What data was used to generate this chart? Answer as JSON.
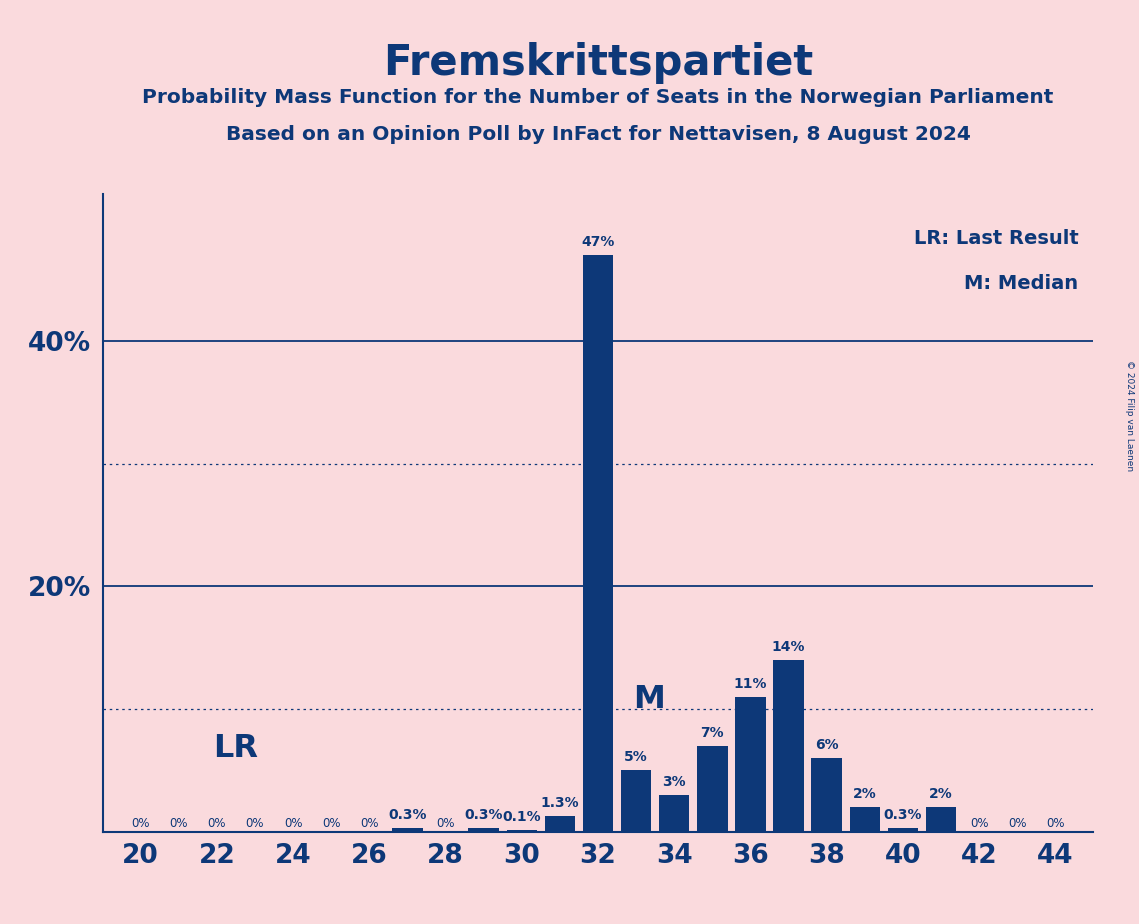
{
  "title": "Fremskrittspartiet",
  "subtitle1": "Probability Mass Function for the Number of Seats in the Norwegian Parliament",
  "subtitle2": "Based on an Opinion Poll by InFact for Nettavisen, 8 August 2024",
  "copyright": "© 2024 Filip van Laenen",
  "seats": [
    20,
    21,
    22,
    23,
    24,
    25,
    26,
    27,
    28,
    29,
    30,
    31,
    32,
    33,
    34,
    35,
    36,
    37,
    38,
    39,
    40,
    41,
    42,
    43,
    44
  ],
  "probabilities": [
    0.0,
    0.0,
    0.0,
    0.0,
    0.0,
    0.0,
    0.0,
    0.003,
    0.0,
    0.003,
    0.001,
    0.013,
    0.47,
    0.05,
    0.03,
    0.07,
    0.11,
    0.14,
    0.06,
    0.02,
    0.003,
    0.02,
    0.0,
    0.0,
    0.0
  ],
  "labels": [
    "0%",
    "0%",
    "0%",
    "0%",
    "0%",
    "0%",
    "0%",
    "0.3%",
    "0%",
    "0.3%",
    "0.1%",
    "1.3%",
    "47%",
    "5%",
    "3%",
    "7%",
    "11%",
    "14%",
    "6%",
    "2%",
    "0.3%",
    "2%",
    "0%",
    "0%",
    "0%"
  ],
  "bar_color": "#0d3878",
  "background_color": "#fadadd",
  "text_color": "#0d3878",
  "lr_seat": 21,
  "median_seat": 33,
  "lr_label": "LR",
  "median_label": "M",
  "legend_lr": "LR: Last Result",
  "legend_m": "M: Median",
  "solid_yticks": [
    0.2,
    0.4
  ],
  "dotted_yticks": [
    0.1,
    0.3
  ],
  "xlim": [
    19.0,
    45.0
  ],
  "ylim": [
    0,
    0.52
  ],
  "xtick_positions": [
    20,
    22,
    24,
    26,
    28,
    30,
    32,
    34,
    36,
    38,
    40,
    42,
    44
  ]
}
